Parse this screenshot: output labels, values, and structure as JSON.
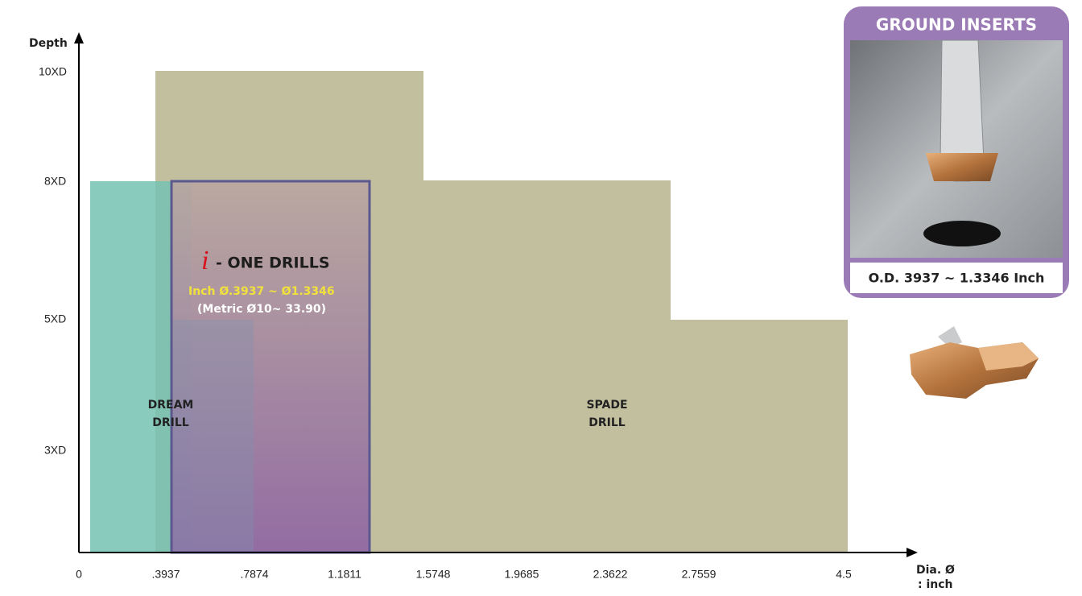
{
  "axis": {
    "y_title": "Depth",
    "y_labels": [
      "10XD",
      "8XD",
      "5XD",
      "3XD"
    ],
    "x_labels": [
      "0",
      ".3937",
      ".7874",
      "1.1811",
      "1.5748",
      "1.9685",
      "2.3622",
      "2.7559",
      "4.5"
    ],
    "x_title": "Dia. Ø",
    "x_unit": ": inch"
  },
  "regions": {
    "dream": [
      "DREAM",
      "DRILL"
    ],
    "spade": [
      "SPADE",
      "DRILL"
    ]
  },
  "one_drills": {
    "i": "i",
    "name": "- ONE DRILLS",
    "inch": "Inch Ø.3937 ~ Ø1.3346",
    "metric": "(Metric Ø10~ 33.90)"
  },
  "inset": {
    "title": "GROUND INSERTS",
    "caption": "O.D. 3937 ~ 1.3346 Inch"
  }
}
